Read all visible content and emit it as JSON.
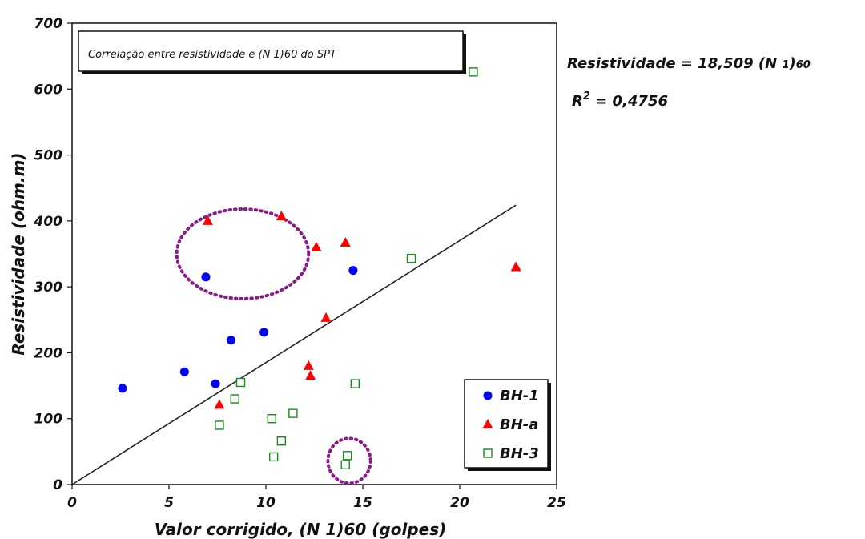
{
  "chart_data": {
    "type": "scatter",
    "title": "Correlação entre resistividade e (N 1)60 do SPT",
    "xlabel": "Valor corrigido, (N 1)60 (golpes)",
    "ylabel": "Resistividade (ohm.m)",
    "xlim": [
      0,
      25
    ],
    "ylim": [
      0,
      700
    ],
    "x_ticks": [
      "0",
      "5",
      "10",
      "15",
      "20",
      "25"
    ],
    "y_ticks": [
      "0",
      "100",
      "200",
      "300",
      "400",
      "500",
      "600",
      "700"
    ],
    "grid": false,
    "legend_position": "bottom-right",
    "series": [
      {
        "name": "BH-1",
        "marker": "circle",
        "color": "#0000ff",
        "points": [
          [
            2.6,
            146
          ],
          [
            5.8,
            171
          ],
          [
            6.9,
            315
          ],
          [
            7.4,
            153
          ],
          [
            8.2,
            219
          ],
          [
            9.9,
            231
          ],
          [
            14.5,
            325
          ]
        ]
      },
      {
        "name": "BH-a",
        "marker": "triangle",
        "color": "#ff0000",
        "points": [
          [
            7.0,
            400
          ],
          [
            7.6,
            121
          ],
          [
            10.8,
            407
          ],
          [
            12.2,
            180
          ],
          [
            12.3,
            165
          ],
          [
            12.6,
            360
          ],
          [
            13.1,
            253
          ],
          [
            14.1,
            367
          ],
          [
            22.9,
            330
          ]
        ]
      },
      {
        "name": "BH-3",
        "marker": "open-square",
        "color": "#1a8a1a",
        "points": [
          [
            7.6,
            90
          ],
          [
            8.4,
            130
          ],
          [
            8.7,
            155
          ],
          [
            10.3,
            100
          ],
          [
            10.4,
            42
          ],
          [
            10.8,
            66
          ],
          [
            11.4,
            108
          ],
          [
            14.1,
            30
          ],
          [
            14.2,
            44
          ],
          [
            14.6,
            153
          ],
          [
            17.5,
            343
          ],
          [
            20.7,
            626
          ]
        ]
      }
    ],
    "trendline": {
      "x": [
        0,
        22.9
      ],
      "y": [
        0,
        423.9
      ],
      "color": "#222222"
    },
    "equation": {
      "line1_prefix": "Resistividade = 18,509 (N ",
      "line1_sub_1": "1",
      "line1_mid": ")",
      "line1_sub_60": "60",
      "line2_prefix": "R",
      "line2_sup": "2",
      "line2_rest": " = 0,4756"
    },
    "annotations": [
      {
        "shape": "dotted-ellipse",
        "center": [
          8.8,
          350
        ],
        "radii": [
          3.4,
          68
        ],
        "color": "#8b1a8b"
      },
      {
        "shape": "dotted-ellipse",
        "center": [
          14.3,
          36
        ],
        "radii": [
          1.1,
          34
        ],
        "color": "#8b1a8b"
      }
    ]
  }
}
